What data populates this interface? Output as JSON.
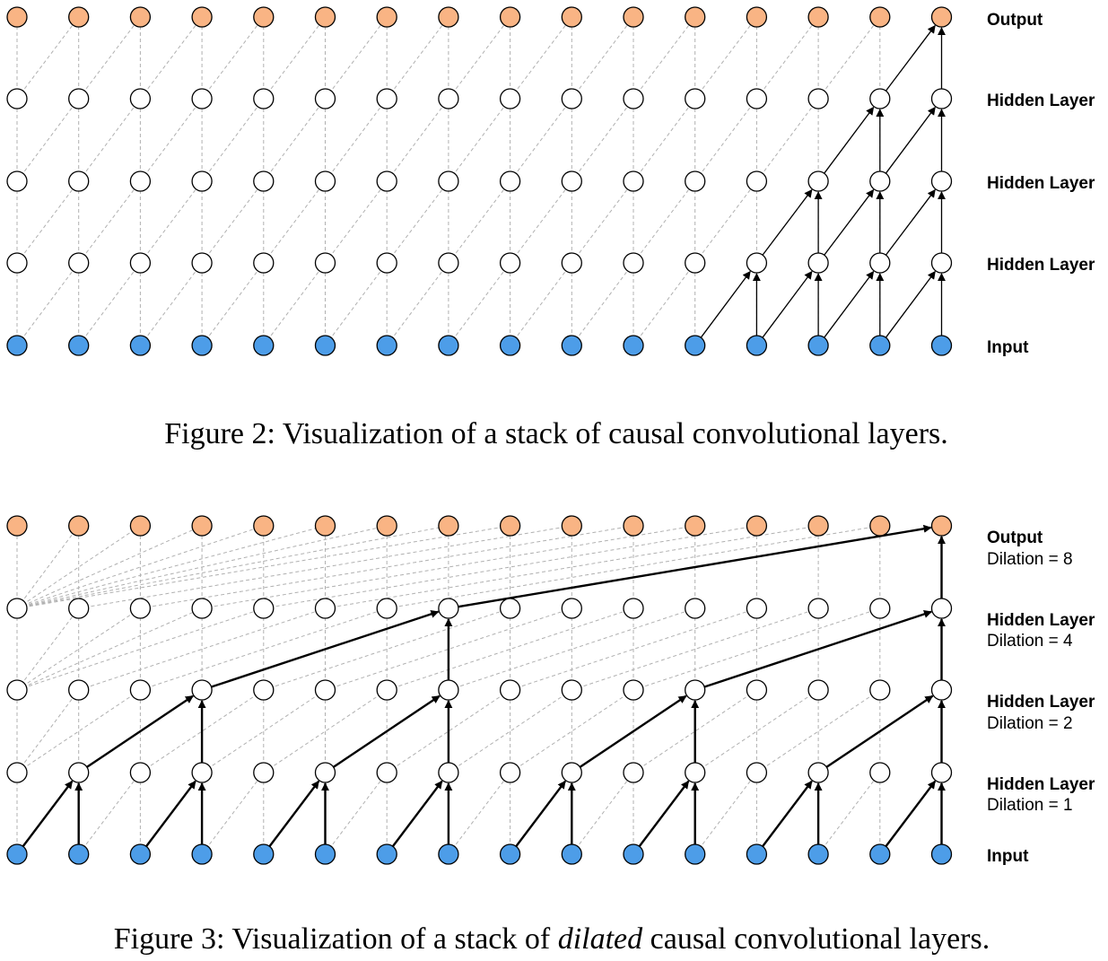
{
  "colors": {
    "input": "#4d9de8",
    "hidden": "#ffffff",
    "output": "#f9b484",
    "dashed": "#b0b0b0",
    "arrow": "#000000"
  },
  "figure2": {
    "layers": [
      {
        "name": "Output"
      },
      {
        "name": "Hidden Layer"
      },
      {
        "name": "Hidden Layer"
      },
      {
        "name": "Hidden Layer"
      },
      {
        "name": "Input"
      }
    ],
    "caption": "Figure 2: Visualization of a stack of causal convolutional layers."
  },
  "figure3": {
    "layers": [
      {
        "name": "Output",
        "dilation": "Dilation = 8"
      },
      {
        "name": "Hidden Layer",
        "dilation": "Dilation = 4"
      },
      {
        "name": "Hidden Layer",
        "dilation": "Dilation = 2"
      },
      {
        "name": "Hidden Layer",
        "dilation": "Dilation = 1"
      },
      {
        "name": "Input"
      }
    ],
    "caption_before": "Figure 3: Visualization of a stack of ",
    "caption_emph": "dilated",
    "caption_after": " causal convolutional layers."
  }
}
